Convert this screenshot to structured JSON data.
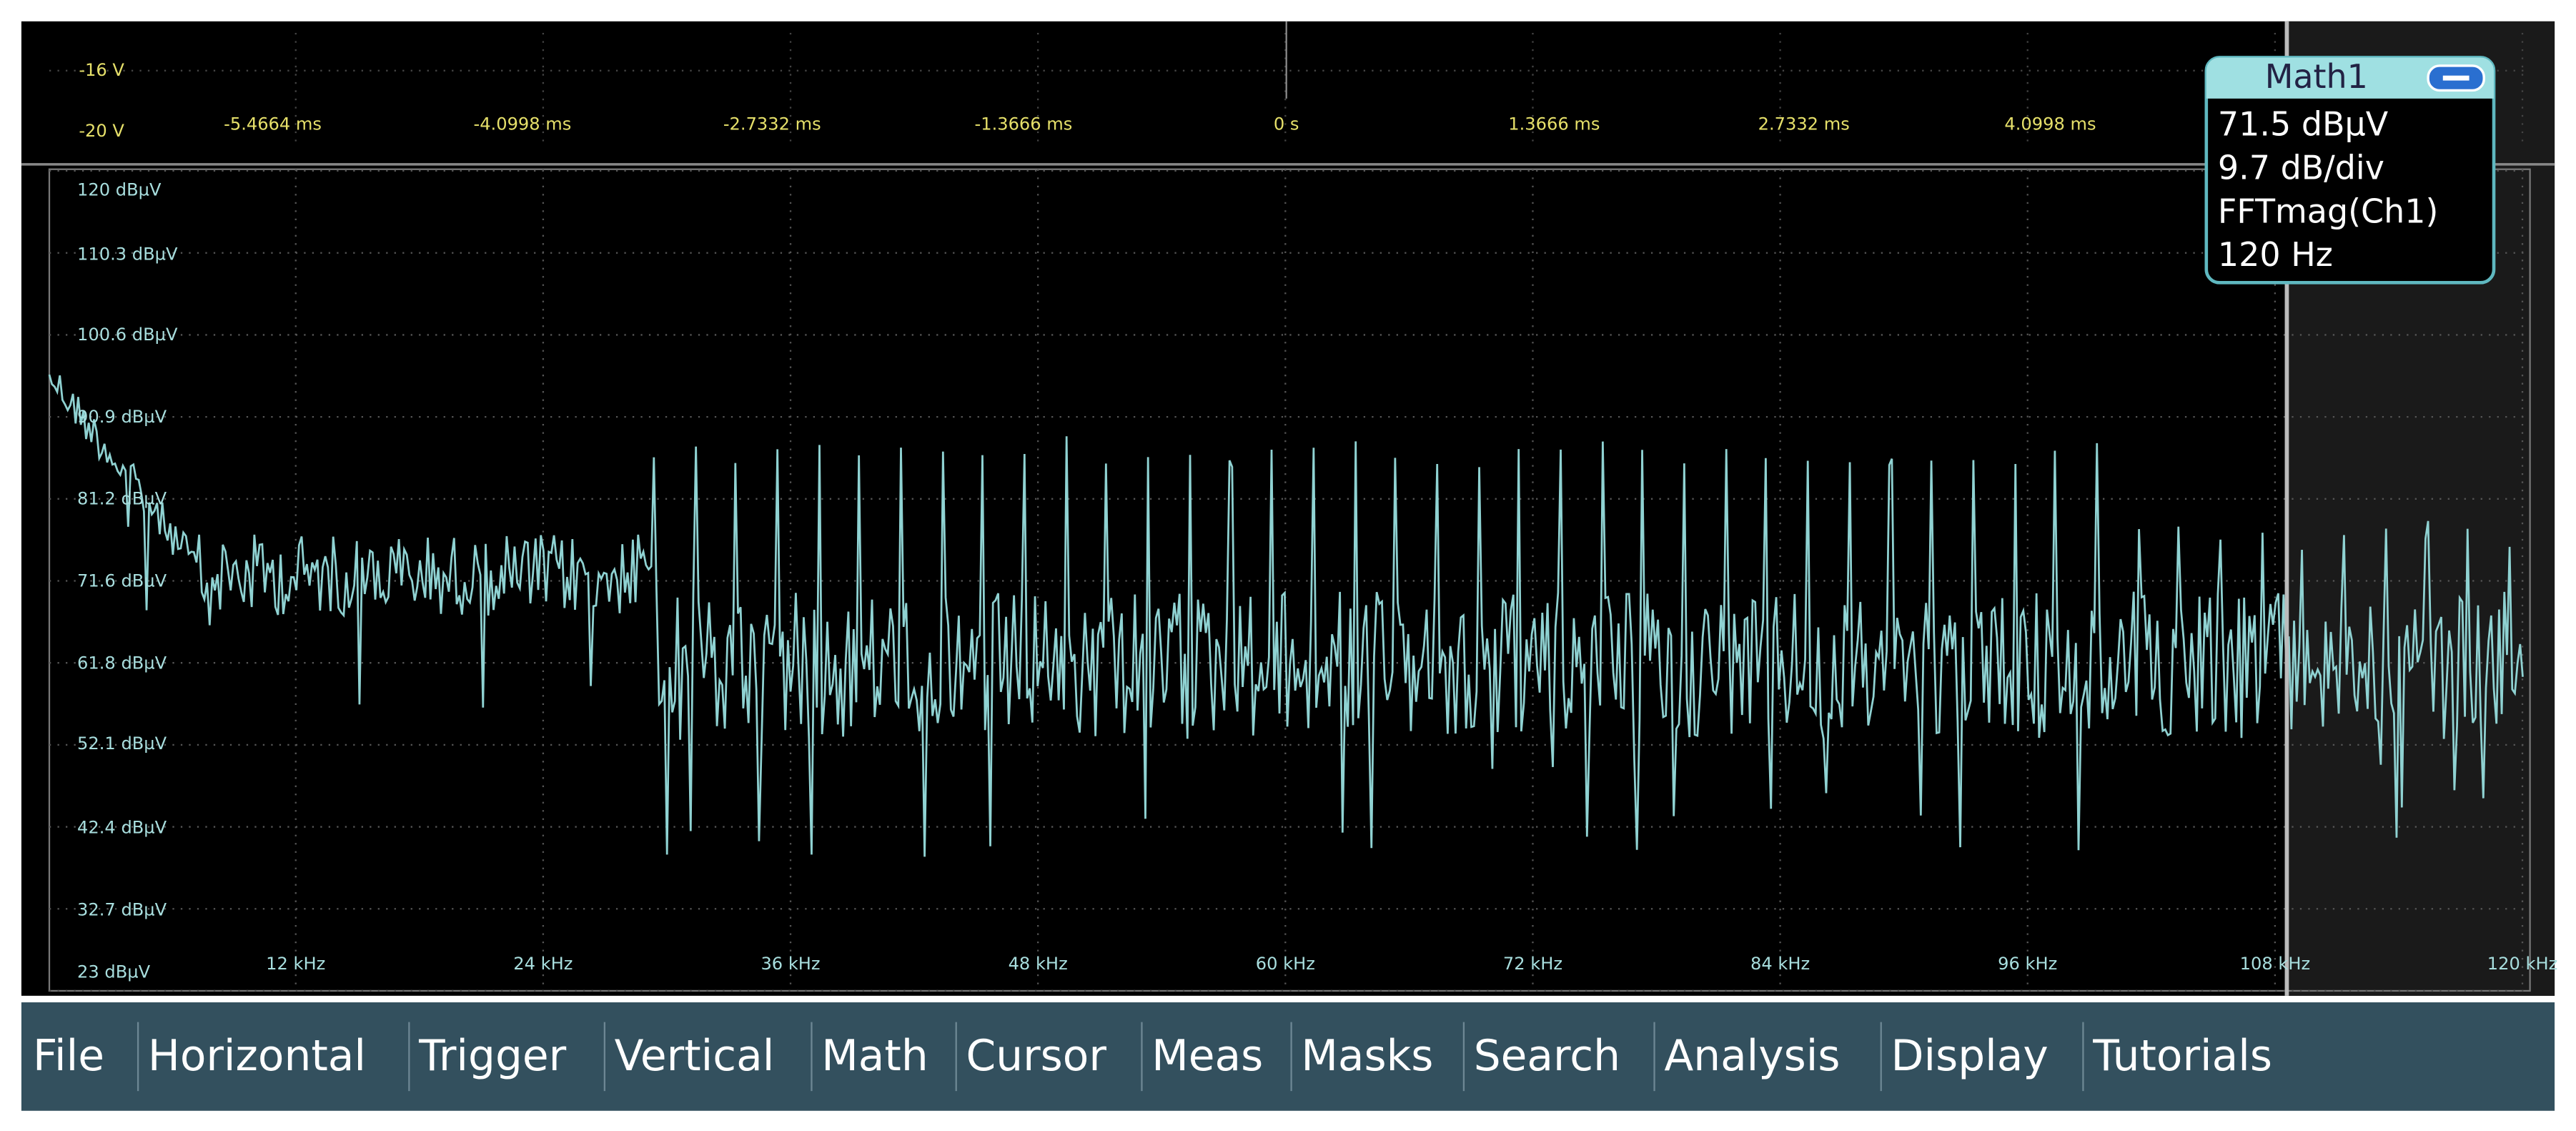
{
  "top_axis": {
    "volt_labels": [
      "-16 V",
      "-20 V"
    ],
    "time_labels": [
      "-5.4664 ms",
      "-4.0998 ms",
      "-2.7332 ms",
      "-1.3666 ms",
      "0 s",
      "1.3666 ms",
      "2.7332 ms",
      "4.0998 ms"
    ]
  },
  "fft": {
    "y_labels": [
      "120 dBµV",
      "110.3 dBµV",
      "100.6 dBµV",
      "90.9 dBµV",
      "81.2 dBµV",
      "71.6 dBµV",
      "61.8 dBµV",
      "52.1 dBµV",
      "42.4 dBµV",
      "32.7 dBµV",
      "23 dBµV"
    ],
    "x_labels": [
      "12 kHz",
      "24 kHz",
      "36 kHz",
      "48 kHz",
      "60 kHz",
      "72 kHz",
      "84 kHz",
      "96 kHz",
      "108 kHz",
      "120 kHz"
    ]
  },
  "math_box": {
    "title": "Math1",
    "lines": [
      "71.5 dBµV",
      "9.7 dB/div",
      "FFTmag(Ch1)",
      "120 Hz"
    ]
  },
  "menu": {
    "items": [
      "File",
      "Horizontal",
      "Trigger",
      "Vertical",
      "Math",
      "Cursor",
      "Meas",
      "Masks",
      "Search",
      "Analysis",
      "Display",
      "Tutorials"
    ]
  }
}
